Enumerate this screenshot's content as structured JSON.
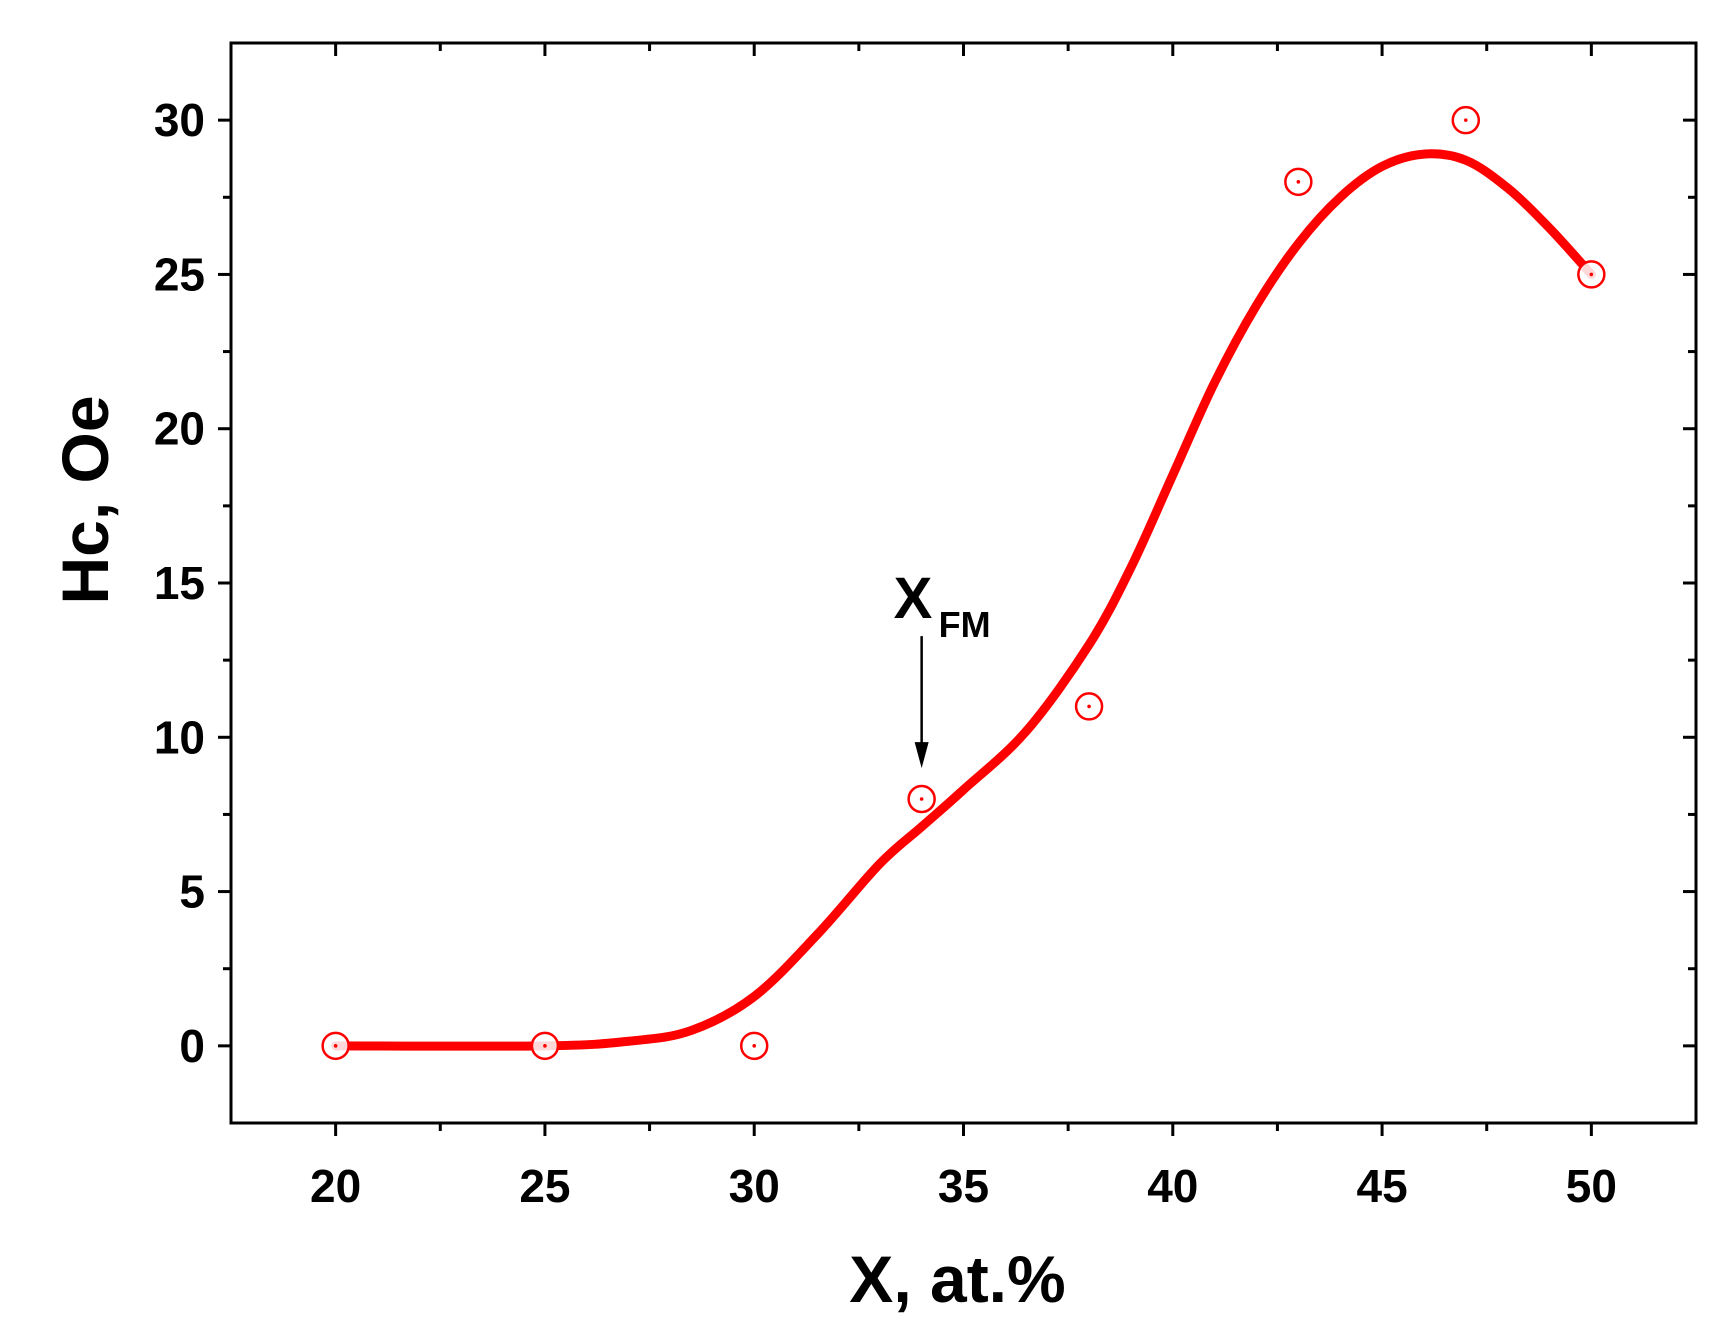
{
  "chart_data": {
    "type": "scatter",
    "title": "",
    "xlabel": "X, at.%",
    "ylabel": "Hc, Oe",
    "xlim": [
      17.5,
      52.5
    ],
    "ylim": [
      -2.5,
      32.5
    ],
    "x_ticks": [
      20,
      25,
      30,
      35,
      40,
      45,
      50
    ],
    "y_ticks": [
      0,
      5,
      10,
      15,
      20,
      25,
      30
    ],
    "grid": false,
    "legend": "none",
    "series": [
      {
        "marker": "open-circle-dot",
        "color": "#ff0000",
        "x": [
          20,
          25,
          30,
          34,
          38,
          43,
          47,
          50
        ],
        "y": [
          0,
          0,
          0,
          8,
          11,
          28,
          30,
          25
        ]
      }
    ],
    "fit_curve": {
      "style": "smooth-line",
      "color": "#ff0000",
      "x": [
        20,
        25,
        27,
        28.5,
        30,
        31.5,
        33,
        34,
        35,
        36.5,
        38,
        39,
        40,
        41,
        42,
        43,
        44,
        45,
        46,
        47,
        48,
        49,
        50
      ],
      "y": [
        0,
        0,
        0.15,
        0.5,
        1.6,
        3.6,
        5.9,
        7.1,
        8.3,
        10.2,
        13.0,
        15.5,
        18.5,
        21.5,
        24.0,
        26.0,
        27.5,
        28.5,
        28.9,
        28.7,
        27.8,
        26.5,
        25.0
      ]
    },
    "annotations": [
      {
        "text": "X",
        "subscript": "FM",
        "arrow_to": {
          "x": 34,
          "y": 9
        }
      }
    ]
  }
}
